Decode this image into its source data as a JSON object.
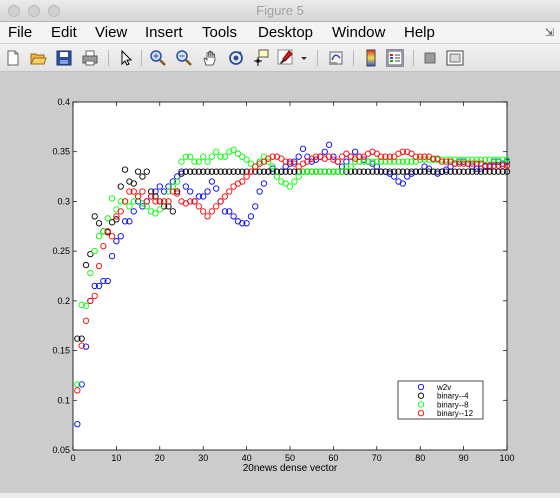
{
  "window": {
    "title": "Figure 5"
  },
  "menu": {
    "items": [
      "File",
      "Edit",
      "View",
      "Insert",
      "Tools",
      "Desktop",
      "Window",
      "Help"
    ],
    "corner_icon": "restore-icon"
  },
  "toolbar": {
    "icons": [
      "new-figure-icon",
      "open-file-icon",
      "save-icon",
      "print-icon",
      "pointer-icon",
      "zoom-in-icon",
      "zoom-out-icon",
      "pan-hand-icon",
      "rotate-3d-icon",
      "data-cursor-icon",
      "brush-icon",
      "brush-dropdown-icon",
      "link-plot-icon",
      "colorbar-icon",
      "legend-icon",
      "hide-plot-tools-icon",
      "show-plot-tools-icon"
    ]
  },
  "chart_data": {
    "type": "scatter",
    "title": "",
    "xlabel": "20news dense vector",
    "ylabel": "",
    "xlim": [
      0,
      100
    ],
    "ylim": [
      0.05,
      0.4
    ],
    "xticks": [
      0,
      10,
      20,
      30,
      40,
      50,
      60,
      70,
      80,
      90,
      100
    ],
    "yticks": [
      0.05,
      0.1,
      0.15,
      0.2,
      0.25,
      0.3,
      0.35,
      0.4
    ],
    "xtick_labels": [
      "0",
      "10",
      "20",
      "30",
      "40",
      "50",
      "60",
      "70",
      "80",
      "90",
      "100"
    ],
    "ytick_labels": [
      "0.05",
      "0.1",
      "0.15",
      "0.2",
      "0.25",
      "0.3",
      "0.35",
      "0.4"
    ],
    "grid": false,
    "legend_position": "bottom-right",
    "series": [
      {
        "name": "w2v",
        "color": "#0000ff",
        "x_start": 1,
        "values": [
          0.076,
          0.116,
          0.154,
          0.2,
          0.215,
          0.215,
          0.22,
          0.22,
          0.245,
          0.26,
          0.265,
          0.28,
          0.28,
          0.29,
          0.3,
          0.295,
          0.3,
          0.305,
          0.31,
          0.315,
          0.31,
          0.315,
          0.32,
          0.325,
          0.33,
          0.315,
          0.31,
          0.3,
          0.305,
          0.305,
          0.31,
          0.32,
          0.313,
          0.3,
          0.29,
          0.29,
          0.285,
          0.28,
          0.278,
          0.278,
          0.285,
          0.295,
          0.31,
          0.318,
          0.33,
          0.333,
          0.33,
          0.33,
          0.335,
          0.338,
          0.34,
          0.345,
          0.353,
          0.345,
          0.34,
          0.342,
          0.345,
          0.35,
          0.357,
          0.345,
          0.34,
          0.335,
          0.34,
          0.345,
          0.35,
          0.345,
          0.342,
          0.34,
          0.338,
          0.335,
          0.33,
          0.33,
          0.328,
          0.325,
          0.32,
          0.318,
          0.325,
          0.328,
          0.33,
          0.33,
          0.335,
          0.333,
          0.33,
          0.328,
          0.33,
          0.332,
          0.335,
          0.338,
          0.34,
          0.34,
          0.338,
          0.335,
          0.333,
          0.333,
          0.335,
          0.335,
          0.34,
          0.34,
          0.338,
          0.34
        ]
      },
      {
        "name": "binary--4",
        "color": "#000000",
        "x_start": 1,
        "values": [
          0.162,
          0.162,
          0.236,
          0.247,
          0.285,
          0.278,
          0.27,
          0.269,
          0.279,
          0.282,
          0.315,
          0.332,
          0.32,
          0.318,
          0.33,
          0.325,
          0.33,
          0.31,
          0.305,
          0.3,
          0.295,
          0.295,
          0.29,
          0.31,
          0.328,
          0.33,
          0.33,
          0.33,
          0.33,
          0.33,
          0.33,
          0.33,
          0.33,
          0.33,
          0.33,
          0.33,
          0.33,
          0.33,
          0.33,
          0.33,
          0.33,
          0.33,
          0.33,
          0.33,
          0.33,
          0.33,
          0.33,
          0.33,
          0.33,
          0.33,
          0.33,
          0.33,
          0.33,
          0.33,
          0.33,
          0.33,
          0.33,
          0.33,
          0.33,
          0.33,
          0.33,
          0.33,
          0.33,
          0.33,
          0.33,
          0.33,
          0.33,
          0.33,
          0.33,
          0.33,
          0.33,
          0.33,
          0.33,
          0.33,
          0.33,
          0.33,
          0.33,
          0.33,
          0.33,
          0.33,
          0.33,
          0.33,
          0.33,
          0.33,
          0.33,
          0.33,
          0.33,
          0.33,
          0.33,
          0.33,
          0.33,
          0.33,
          0.33,
          0.33,
          0.33,
          0.33,
          0.33,
          0.33,
          0.33,
          0.33
        ]
      },
      {
        "name": "binary--8",
        "color": "#00ff00",
        "x_start": 1,
        "values": [
          0.116,
          0.196,
          0.195,
          0.228,
          0.25,
          0.265,
          0.27,
          0.283,
          0.303,
          0.292,
          0.3,
          0.3,
          0.295,
          0.3,
          0.305,
          0.298,
          0.295,
          0.29,
          0.288,
          0.292,
          0.3,
          0.31,
          0.315,
          0.32,
          0.34,
          0.345,
          0.345,
          0.34,
          0.34,
          0.345,
          0.34,
          0.345,
          0.35,
          0.345,
          0.345,
          0.35,
          0.352,
          0.348,
          0.345,
          0.342,
          0.338,
          0.335,
          0.34,
          0.345,
          0.34,
          0.335,
          0.325,
          0.32,
          0.318,
          0.315,
          0.32,
          0.325,
          0.33,
          0.33,
          0.33,
          0.33,
          0.33,
          0.33,
          0.33,
          0.33,
          0.33,
          0.33,
          0.335,
          0.335,
          0.34,
          0.34,
          0.34,
          0.34,
          0.34,
          0.34,
          0.34,
          0.34,
          0.34,
          0.34,
          0.34,
          0.34,
          0.34,
          0.34,
          0.34,
          0.342,
          0.342,
          0.342,
          0.342,
          0.342,
          0.342,
          0.342,
          0.342,
          0.342,
          0.342,
          0.342,
          0.342,
          0.342,
          0.342,
          0.342,
          0.342,
          0.342,
          0.342,
          0.342,
          0.342,
          0.342
        ]
      },
      {
        "name": "binary--12",
        "color": "#ff0000",
        "x_start": 1,
        "values": [
          0.11,
          0.155,
          0.18,
          0.2,
          0.205,
          0.235,
          0.255,
          0.27,
          0.265,
          0.285,
          0.29,
          0.3,
          0.31,
          0.31,
          0.305,
          0.31,
          0.3,
          0.305,
          0.3,
          0.3,
          0.3,
          0.3,
          0.31,
          0.308,
          0.3,
          0.298,
          0.3,
          0.3,
          0.295,
          0.29,
          0.285,
          0.29,
          0.295,
          0.3,
          0.305,
          0.31,
          0.315,
          0.318,
          0.32,
          0.325,
          0.33,
          0.335,
          0.338,
          0.34,
          0.343,
          0.345,
          0.345,
          0.343,
          0.34,
          0.34,
          0.338,
          0.335,
          0.338,
          0.34,
          0.343,
          0.345,
          0.345,
          0.343,
          0.345,
          0.342,
          0.34,
          0.345,
          0.348,
          0.345,
          0.343,
          0.345,
          0.345,
          0.348,
          0.35,
          0.348,
          0.345,
          0.345,
          0.345,
          0.345,
          0.348,
          0.35,
          0.35,
          0.348,
          0.345,
          0.345,
          0.345,
          0.345,
          0.343,
          0.343,
          0.34,
          0.34,
          0.34,
          0.338,
          0.338,
          0.338,
          0.338,
          0.338,
          0.338,
          0.338,
          0.336,
          0.336,
          0.336,
          0.336,
          0.336,
          0.336
        ]
      }
    ]
  }
}
